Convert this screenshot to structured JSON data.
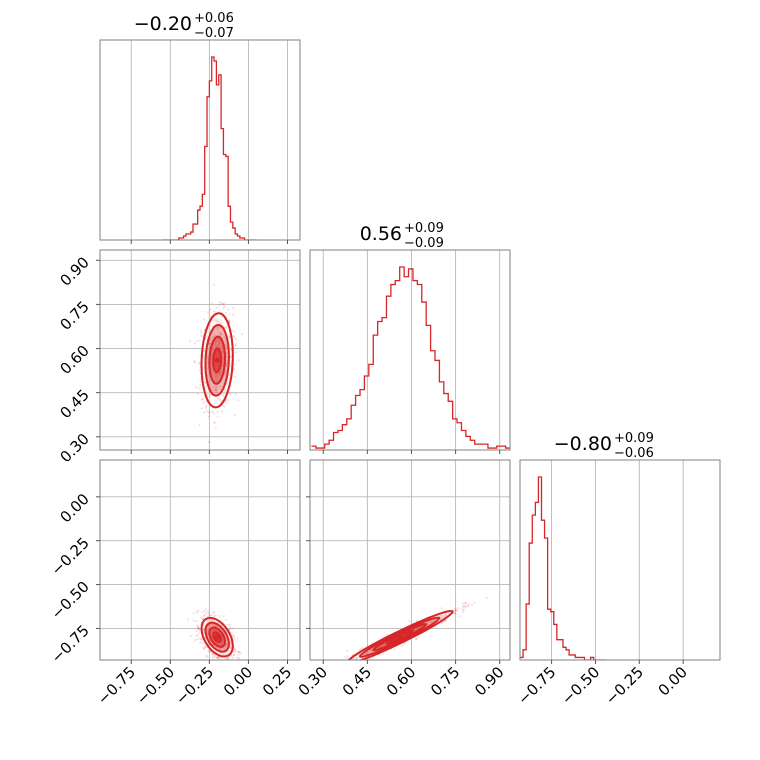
{
  "chart_data": {
    "type": "corner",
    "color": "#d62728",
    "grid": true,
    "parameters": [
      {
        "median": "−0.20",
        "upper": "+0.06",
        "lower": "−0.07",
        "range": [
          -0.95,
          0.33
        ],
        "ticks": [
          -0.75,
          -0.5,
          -0.25,
          0.0,
          0.25
        ],
        "tick_labels": [
          "−0.75",
          "−0.50",
          "−0.25",
          "0.00",
          "0.25"
        ]
      },
      {
        "median": "0.56",
        "upper": "+0.09",
        "lower": "−0.09",
        "range": [
          0.255,
          0.935
        ],
        "ticks": [
          0.3,
          0.45,
          0.6,
          0.75,
          0.9
        ],
        "tick_labels": [
          "0.30",
          "0.45",
          "0.60",
          "0.75",
          "0.90"
        ]
      },
      {
        "median": "−0.80",
        "upper": "+0.09",
        "lower": "−0.06",
        "range": [
          -0.93,
          0.21
        ],
        "ticks": [
          -0.75,
          -0.5,
          -0.25,
          0.0
        ],
        "tick_labels": [
          "−0.75",
          "−0.50",
          "−0.25",
          "0.00"
        ]
      }
    ],
    "histograms": [
      {
        "param": 0,
        "bin_start": -0.55,
        "bin_width": 0.015,
        "counts": [
          0,
          0,
          0,
          0,
          0,
          0,
          0,
          1,
          1,
          2,
          3,
          3,
          4,
          8,
          8,
          15,
          17,
          23,
          47,
          72,
          80,
          92,
          90,
          78,
          83,
          56,
          43,
          42,
          17,
          9,
          6,
          3,
          2,
          1,
          1,
          0,
          0,
          0,
          0,
          0
        ]
      },
      {
        "param": 1,
        "bin_start": 0.26,
        "bin_width": 0.015,
        "counts": [
          2,
          1,
          1,
          3,
          5,
          9,
          10,
          13,
          16,
          23,
          28,
          31,
          38,
          44,
          59,
          66,
          68,
          79,
          85,
          87,
          94,
          89,
          93,
          87,
          85,
          76,
          64,
          51,
          46,
          35,
          29,
          25,
          16,
          14,
          10,
          7,
          5,
          3,
          3,
          3,
          1,
          1,
          2,
          2,
          1
        ]
      },
      {
        "param": 2,
        "bin_start": -0.93,
        "bin_width": 0.0175,
        "counts": [
          1,
          4,
          22,
          46,
          57,
          62,
          72,
          55,
          48,
          20,
          19,
          14,
          8,
          8,
          5,
          4,
          2,
          2,
          1,
          1,
          1,
          0,
          0,
          1,
          0,
          0,
          0,
          0
        ]
      }
    ],
    "pairs": [
      {
        "x_param": 0,
        "y_param": 1,
        "center": [
          -0.2,
          0.56
        ],
        "sigma": [
          0.05,
          0.08
        ],
        "rho": 0.1,
        "n_samples": 900,
        "contour_levels": [
          0.5,
          1.0,
          1.5,
          2.0
        ]
      },
      {
        "x_param": 0,
        "y_param": 2,
        "center": [
          -0.2,
          -0.8
        ],
        "sigma": [
          0.05,
          0.055
        ],
        "rho": -0.45,
        "n_samples": 900,
        "contour_levels": [
          0.5,
          1.0,
          1.5,
          2.0
        ]
      },
      {
        "x_param": 1,
        "y_param": 2,
        "center": [
          0.56,
          -0.8
        ],
        "sigma": [
          0.09,
          0.075
        ],
        "rho": 0.97,
        "n_samples": 900,
        "contour_levels": [
          0.5,
          1.0,
          1.5,
          2.0
        ]
      }
    ]
  }
}
